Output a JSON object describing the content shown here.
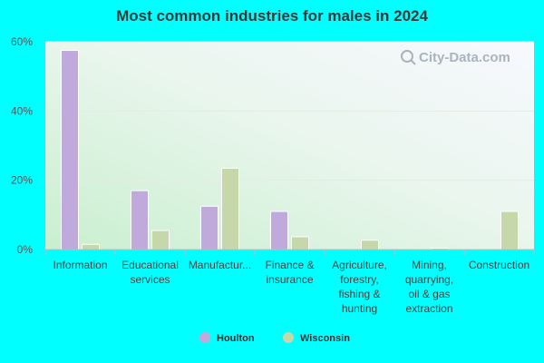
{
  "chart_data": {
    "type": "bar",
    "title": "Most common industries for males in 2024",
    "categories": [
      [
        "Information"
      ],
      [
        "Educational",
        "services"
      ],
      [
        "Manufactur..."
      ],
      [
        "Finance &",
        "insurance"
      ],
      [
        "Agriculture,",
        "forestry,",
        "fishing &",
        "hunting"
      ],
      [
        "Mining,",
        "quarrying,",
        "oil & gas",
        "extraction"
      ],
      [
        "Construction"
      ]
    ],
    "series": [
      {
        "name": "Houlton",
        "color": "#c0aadc",
        "values": [
          57.5,
          17.0,
          12.5,
          11.0,
          0.0,
          0.0,
          0.0
        ]
      },
      {
        "name": "Wisconsin",
        "color": "#c6d8a9",
        "values": [
          1.5,
          5.5,
          23.5,
          3.7,
          2.7,
          0.4,
          11.0
        ]
      }
    ],
    "ylim": [
      0,
      60
    ],
    "yticks": [
      0,
      20,
      40,
      60
    ],
    "ytick_labels": [
      "0%",
      "20%",
      "40%",
      "60%"
    ],
    "grid": true,
    "legend_position": "bottom-center"
  },
  "watermark": "City-Data.com"
}
